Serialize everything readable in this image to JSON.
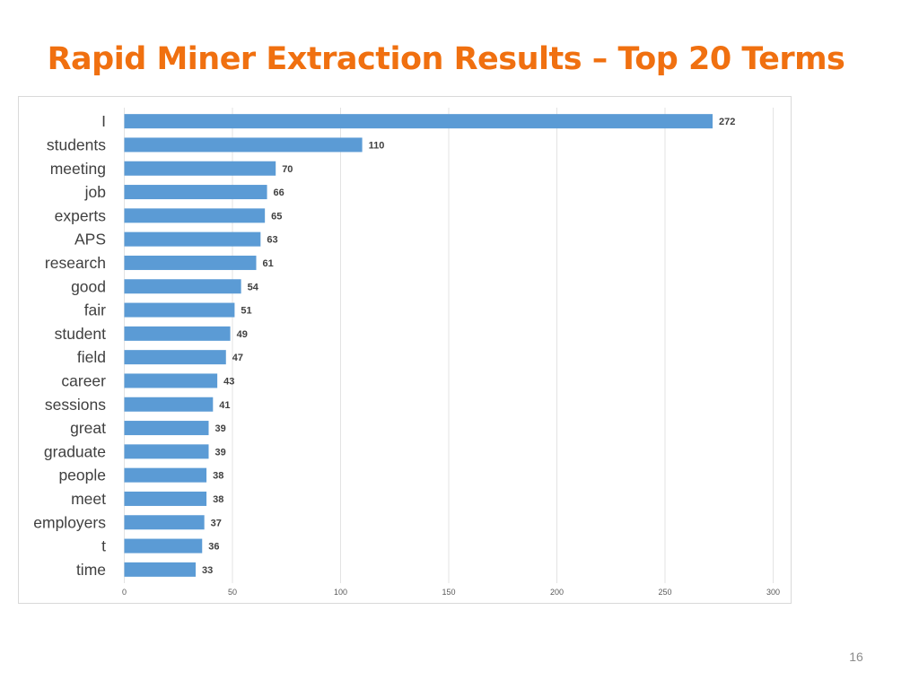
{
  "slide": {
    "title": "Rapid Miner Extraction Results – Top 20 Terms",
    "page_number": "16",
    "title_color": "#f07010"
  },
  "chart_data": {
    "type": "bar",
    "orientation": "horizontal",
    "title": "",
    "xlabel": "",
    "ylabel": "",
    "categories": [
      "I",
      "students",
      "meeting",
      "job",
      "experts",
      "APS",
      "research",
      "good",
      "fair",
      "student",
      "field",
      "career",
      "sessions",
      "great",
      "graduate",
      "people",
      "meet",
      "employers",
      "t",
      "time"
    ],
    "values": [
      272,
      110,
      70,
      66,
      65,
      63,
      61,
      54,
      51,
      49,
      47,
      43,
      41,
      39,
      39,
      38,
      38,
      37,
      36,
      33
    ],
    "xlim": [
      0,
      300
    ],
    "xticks": [
      0,
      50,
      100,
      150,
      200,
      250,
      300
    ],
    "grid": "vertical",
    "data_labels": true,
    "legend": "none",
    "bar_color": "#5b9bd5",
    "grid_color": "#e3e3e3",
    "label_color": "#404040",
    "value_label_color": "#404040",
    "tick_color": "#595959"
  }
}
